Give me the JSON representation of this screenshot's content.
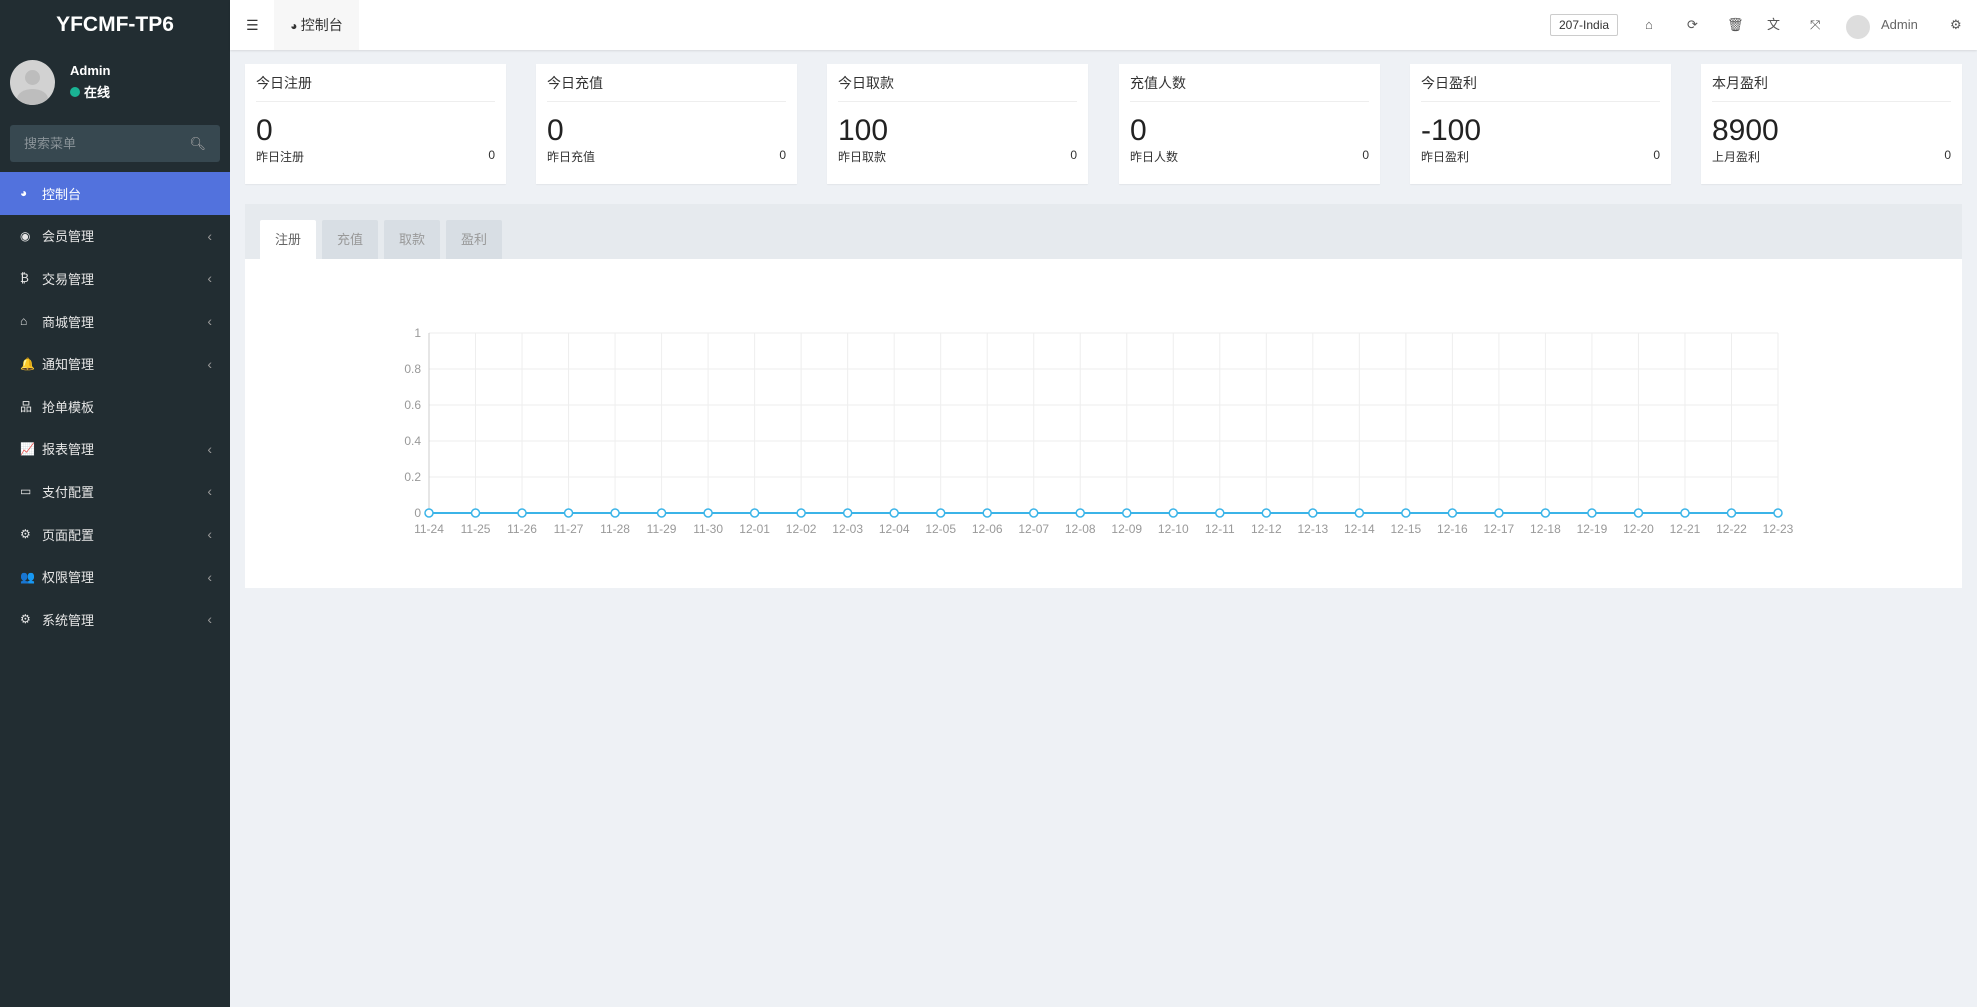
{
  "app": {
    "logo": "YFCMF-TP6"
  },
  "user": {
    "name": "Admin",
    "status": "在线"
  },
  "search": {
    "placeholder": "搜索菜单"
  },
  "sidebar": {
    "items": [
      {
        "label": "控制台",
        "icon": "dashboard-icon",
        "glyph": "◕",
        "active": true,
        "chevron": false
      },
      {
        "label": "会员管理",
        "icon": "user-circle-icon",
        "glyph": "◉",
        "chevron": true
      },
      {
        "label": "交易管理",
        "icon": "bitcoin-icon",
        "glyph": "₿",
        "chevron": true
      },
      {
        "label": "商城管理",
        "icon": "home-icon",
        "glyph": "⌂",
        "chevron": true
      },
      {
        "label": "通知管理",
        "icon": "bell-icon",
        "glyph": "🔔",
        "chevron": true
      },
      {
        "label": "抢单模板",
        "icon": "sitemap-icon",
        "glyph": "品",
        "chevron": false
      },
      {
        "label": "报表管理",
        "icon": "line-chart-icon",
        "glyph": "📈",
        "chevron": true
      },
      {
        "label": "支付配置",
        "icon": "credit-card-icon",
        "glyph": "▭",
        "chevron": true
      },
      {
        "label": "页面配置",
        "icon": "cog-icon",
        "glyph": "⚙",
        "chevron": true
      },
      {
        "label": "权限管理",
        "icon": "users-icon",
        "glyph": "👥",
        "chevron": true
      },
      {
        "label": "系统管理",
        "icon": "cogs-icon",
        "glyph": "⚙",
        "chevron": true
      }
    ]
  },
  "header": {
    "tab": "控制台",
    "server": "207-India",
    "admin": "Admin"
  },
  "cards": [
    {
      "title": "今日注册",
      "value": "0",
      "sub_label": "昨日注册",
      "sub_value": "0"
    },
    {
      "title": "今日充值",
      "value": "0",
      "sub_label": "昨日充值",
      "sub_value": "0"
    },
    {
      "title": "今日取款",
      "value": "100",
      "sub_label": "昨日取款",
      "sub_value": "0"
    },
    {
      "title": "充值人数",
      "value": "0",
      "sub_label": "昨日人数",
      "sub_value": "0"
    },
    {
      "title": "今日盈利",
      "value": "-100",
      "sub_label": "昨日盈利",
      "sub_value": "0"
    },
    {
      "title": "本月盈利",
      "value": "8900",
      "sub_label": "上月盈利",
      "sub_value": "0"
    }
  ],
  "chart_tabs": [
    "注册",
    "充值",
    "取款",
    "盈利"
  ],
  "chart_data": {
    "type": "line",
    "categories": [
      "11-24",
      "11-25",
      "11-26",
      "11-27",
      "11-28",
      "11-29",
      "11-30",
      "12-01",
      "12-02",
      "12-03",
      "12-04",
      "12-05",
      "12-06",
      "12-07",
      "12-08",
      "12-09",
      "12-10",
      "12-11",
      "12-12",
      "12-13",
      "12-14",
      "12-15",
      "12-16",
      "12-17",
      "12-18",
      "12-19",
      "12-20",
      "12-21",
      "12-22",
      "12-23"
    ],
    "values": [
      0,
      0,
      0,
      0,
      0,
      0,
      0,
      0,
      0,
      0,
      0,
      0,
      0,
      0,
      0,
      0,
      0,
      0,
      0,
      0,
      0,
      0,
      0,
      0,
      0,
      0,
      0,
      0,
      0,
      0
    ],
    "yticks": [
      "0",
      "0.2",
      "0.4",
      "0.6",
      "0.8",
      "1"
    ],
    "ylim": [
      0,
      1
    ],
    "grid": true,
    "color": "#3bb4e8"
  }
}
